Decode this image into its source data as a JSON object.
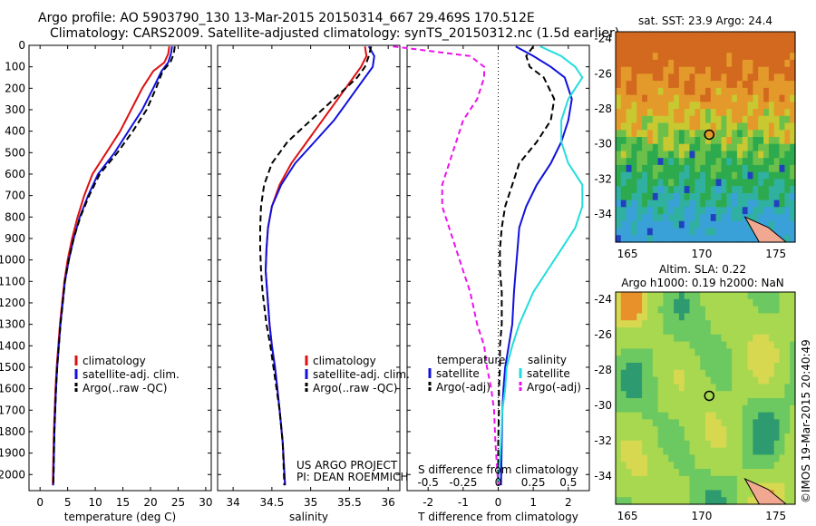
{
  "header": {
    "title_line1": "Argo profile: AO 5903790_130 13-Mar-2015 20150314_667 29.469S 170.512E",
    "title_line2": "Climatology: CARS2009. Satellite-adjusted climatology: synTS_20150312.nc (1.5d earlier)"
  },
  "colors": {
    "climatology": "#dd1111",
    "satellite": "#1111dd",
    "argo": "#000000",
    "sal_satellite": "#22dddd",
    "sal_argo": "#ee11ee"
  },
  "panels": {
    "temperature": {
      "xlabel": "temperature (deg C)",
      "legend": [
        "climatology",
        "satellite-adj. clim.",
        "Argo(..raw -QC)"
      ]
    },
    "salinity": {
      "xlabel": "salinity",
      "legend": [
        "climatology",
        "satellite-adj. clim.",
        "Argo(..raw -QC)"
      ],
      "note1": "US ARGO PROJECT",
      "note2": "PI: DEAN ROEMMICH"
    },
    "difference": {
      "xlabel_bottom": "T difference from climatology",
      "xlabel_top": "S difference from climatology",
      "legend_head_t": "temperature",
      "legend_head_s": "salinity",
      "legend_t": [
        "satellite",
        "Argo(-adj)"
      ],
      "legend_s": [
        "satellite",
        "Argo(-adj)"
      ]
    }
  },
  "maps": {
    "sst": {
      "title": "sat. SST: 23.9 Argo: 24.4"
    },
    "sla": {
      "title1": "Altim. SLA: 0.22",
      "title2": "Argo h1000: 0.19 h2000: NaN"
    },
    "credit": "©IMOS 19-Mar-2015 20:40:49",
    "xticks": [
      "165",
      "170",
      "175"
    ],
    "yticks": [
      "-24",
      "-26",
      "-28",
      "-30",
      "-32",
      "-34"
    ]
  },
  "chart_data": [
    {
      "type": "line",
      "panel": "temperature",
      "xlabel": "temperature (deg C)",
      "ylabel": "",
      "xlim": [
        -2,
        31
      ],
      "ylim": [
        2075,
        0
      ],
      "xticks": [
        0,
        5,
        10,
        15,
        20,
        25,
        30
      ],
      "yticks": [
        0,
        100,
        200,
        300,
        400,
        500,
        600,
        700,
        800,
        900,
        1000,
        1100,
        1200,
        1300,
        1400,
        1500,
        1600,
        1700,
        1800,
        1900,
        2000
      ],
      "series": [
        {
          "name": "climatology",
          "x": [
            23.4,
            23.2,
            22.5,
            20.5,
            18.5,
            16.5,
            14.5,
            12.0,
            9.5,
            8.0,
            6.8,
            5.8,
            5.0,
            4.4,
            4.0,
            3.6,
            3.3,
            3.0,
            2.8,
            2.5,
            2.3
          ],
          "depth": [
            5,
            40,
            80,
            120,
            200,
            300,
            400,
            500,
            600,
            700,
            800,
            900,
            1000,
            1100,
            1200,
            1300,
            1400,
            1500,
            1600,
            1800,
            2050
          ]
        },
        {
          "name": "satellite-adj. clim.",
          "x": [
            23.9,
            23.7,
            23.2,
            22.0,
            20.5,
            18.5,
            16.0,
            13.5,
            10.5,
            8.7,
            7.2,
            6.1,
            5.2,
            4.5,
            4.1,
            3.7,
            3.4,
            3.1,
            2.9,
            2.6,
            2.4
          ],
          "depth": [
            5,
            40,
            80,
            120,
            200,
            300,
            400,
            500,
            600,
            700,
            800,
            900,
            1000,
            1100,
            1200,
            1300,
            1400,
            1500,
            1600,
            1800,
            2050
          ]
        },
        {
          "name": "Argo(..raw -QC)",
          "x": [
            24.4,
            24.2,
            23.6,
            22.2,
            21.0,
            19.3,
            16.8,
            14.0,
            10.8,
            8.9,
            7.3,
            6.1,
            5.2,
            4.5,
            4.1,
            3.7,
            3.4,
            3.1,
            2.9,
            2.6,
            2.4
          ],
          "depth": [
            5,
            40,
            80,
            120,
            200,
            300,
            400,
            500,
            600,
            700,
            800,
            900,
            1000,
            1100,
            1200,
            1300,
            1400,
            1500,
            1600,
            1800,
            2050
          ]
        }
      ]
    },
    {
      "type": "line",
      "panel": "salinity",
      "xlabel": "salinity",
      "ylabel": "",
      "xlim": [
        33.8,
        36.15
      ],
      "ylim": [
        2075,
        0
      ],
      "xticks": [
        34,
        34.5,
        35,
        35.5,
        36
      ],
      "series": [
        {
          "name": "climatology",
          "x": [
            35.7,
            35.72,
            35.65,
            35.55,
            35.35,
            35.15,
            34.95,
            34.75,
            34.6,
            34.5,
            34.45,
            34.43,
            34.42,
            34.44,
            34.47,
            34.5,
            34.54,
            34.57,
            34.6,
            34.64,
            34.67
          ],
          "depth": [
            5,
            50,
            100,
            150,
            250,
            350,
            450,
            550,
            650,
            750,
            850,
            950,
            1050,
            1150,
            1300,
            1400,
            1500,
            1600,
            1700,
            1850,
            2050
          ]
        },
        {
          "name": "satellite-adj. clim.",
          "x": [
            35.75,
            35.82,
            35.8,
            35.7,
            35.5,
            35.3,
            35.05,
            34.8,
            34.62,
            34.5,
            34.45,
            34.43,
            34.42,
            34.44,
            34.47,
            34.5,
            34.54,
            34.57,
            34.6,
            34.64,
            34.67
          ],
          "depth": [
            5,
            50,
            100,
            150,
            250,
            350,
            450,
            550,
            650,
            750,
            850,
            950,
            1050,
            1150,
            1300,
            1400,
            1500,
            1600,
            1700,
            1850,
            2050
          ]
        },
        {
          "name": "Argo(..raw -QC)",
          "x": [
            35.78,
            35.75,
            35.7,
            35.6,
            35.3,
            35.0,
            34.7,
            34.5,
            34.4,
            34.36,
            34.35,
            34.35,
            34.36,
            34.38,
            34.43,
            34.48,
            34.52,
            34.56,
            34.6,
            34.64,
            34.66
          ],
          "depth": [
            5,
            50,
            100,
            150,
            250,
            350,
            450,
            550,
            650,
            750,
            850,
            950,
            1050,
            1150,
            1300,
            1400,
            1500,
            1600,
            1700,
            1850,
            2050
          ]
        }
      ]
    },
    {
      "type": "line",
      "panel": "difference",
      "xlabel": "T difference from climatology",
      "xlabel_top": "S difference from climatology",
      "ylabel": "",
      "xlim": [
        -2.6,
        2.6
      ],
      "ylim": [
        2075,
        0
      ],
      "xticks": [
        -2,
        -1,
        0,
        1,
        2
      ],
      "xticks_top": [
        "-0.5",
        "-0.25",
        "0",
        "0.25",
        "0.5"
      ],
      "series": [
        {
          "name": "T satellite",
          "x": [
            0.5,
            1.0,
            1.5,
            1.9,
            2.1,
            2.0,
            1.8,
            1.5,
            1.1,
            0.8,
            0.6,
            0.55,
            0.5,
            0.45,
            0.4,
            0.3,
            0.2,
            0.15,
            0.12,
            0.1,
            0.08
          ],
          "depth": [
            5,
            50,
            100,
            150,
            250,
            350,
            450,
            550,
            650,
            750,
            850,
            950,
            1050,
            1150,
            1300,
            1400,
            1500,
            1600,
            1700,
            1850,
            2050
          ]
        },
        {
          "name": "T Argo(-adj)",
          "x": [
            1.0,
            0.8,
            0.9,
            1.3,
            1.6,
            1.5,
            1.1,
            0.6,
            0.4,
            0.2,
            0.1,
            0.05,
            0.05,
            0.1,
            0.1,
            0.05,
            0.05,
            0.02,
            0.02,
            0.0,
            0.0
          ],
          "depth": [
            5,
            50,
            100,
            150,
            250,
            350,
            450,
            550,
            650,
            750,
            850,
            950,
            1050,
            1150,
            1300,
            1400,
            1500,
            1600,
            1700,
            1850,
            2050
          ]
        },
        {
          "name": "S satellite",
          "x": [
            0.3,
            0.45,
            0.55,
            0.6,
            0.5,
            0.45,
            0.45,
            0.5,
            0.6,
            0.6,
            0.55,
            0.45,
            0.35,
            0.25,
            0.15,
            0.1,
            0.06,
            0.05,
            0.03,
            0.02,
            0.0
          ],
          "depth": [
            5,
            50,
            100,
            150,
            250,
            350,
            450,
            550,
            650,
            750,
            850,
            950,
            1050,
            1150,
            1300,
            1400,
            1500,
            1600,
            1700,
            1850,
            2050
          ]
        },
        {
          "name": "S Argo(-adj)",
          "x": [
            -0.75,
            -0.2,
            -0.1,
            -0.1,
            -0.15,
            -0.25,
            -0.3,
            -0.35,
            -0.4,
            -0.4,
            -0.35,
            -0.3,
            -0.25,
            -0.2,
            -0.15,
            -0.1,
            -0.08,
            -0.05,
            -0.03,
            -0.02,
            0.0
          ],
          "depth": [
            5,
            50,
            100,
            150,
            250,
            350,
            450,
            550,
            650,
            750,
            850,
            950,
            1050,
            1150,
            1300,
            1400,
            1500,
            1600,
            1700,
            1850,
            2050
          ]
        }
      ]
    }
  ]
}
